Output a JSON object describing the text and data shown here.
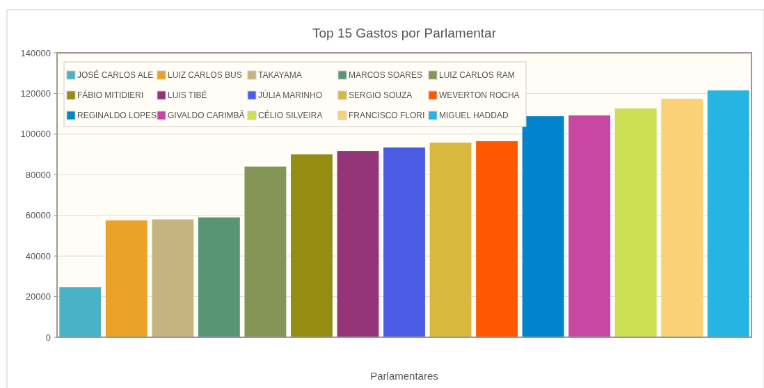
{
  "chart_data": {
    "type": "bar",
    "title": "Top 15 Gastos por Parlamentar",
    "xlabel": "Parlamentares",
    "categories": [
      null,
      null,
      null,
      null,
      null,
      null,
      null,
      null,
      null,
      null,
      null,
      null,
      null,
      null,
      null
    ],
    "ylim": [
      0,
      140000
    ],
    "yticks": [
      0,
      20000,
      40000,
      60000,
      80000,
      100000,
      120000,
      140000
    ],
    "grid": "y",
    "legend": "top left",
    "series": [
      {
        "name": "JOSÉ CARLOS ALE",
        "color": "#4bb2c5",
        "values": [
          24600,
          null,
          null,
          null,
          null,
          null,
          null,
          null,
          null,
          null,
          null,
          null,
          null,
          null,
          null
        ]
      },
      {
        "name": "LUIZ CARLOS BUS",
        "color": "#eaa228",
        "values": [
          null,
          57500,
          null,
          null,
          null,
          null,
          null,
          null,
          null,
          null,
          null,
          null,
          null,
          null,
          null
        ]
      },
      {
        "name": "TAKAYAMA",
        "color": "#c5b47f",
        "values": [
          null,
          null,
          58000,
          null,
          null,
          null,
          null,
          null,
          null,
          null,
          null,
          null,
          null,
          null,
          null
        ]
      },
      {
        "name": "MARCOS SOARES",
        "color": "#579575",
        "values": [
          null,
          null,
          null,
          59000,
          null,
          null,
          null,
          null,
          null,
          null,
          null,
          null,
          null,
          null,
          null
        ]
      },
      {
        "name": "LUIZ CARLOS RAM",
        "color": "#839557",
        "values": [
          null,
          null,
          null,
          null,
          84000,
          null,
          null,
          null,
          null,
          null,
          null,
          null,
          null,
          null,
          null
        ]
      },
      {
        "name": "FÁBIO MITIDIERI",
        "color": "#958c12",
        "values": [
          null,
          null,
          null,
          null,
          null,
          90000,
          null,
          null,
          null,
          null,
          null,
          null,
          null,
          null,
          null
        ]
      },
      {
        "name": "LUIS TIBÉ",
        "color": "#953579",
        "values": [
          null,
          null,
          null,
          null,
          null,
          null,
          91700,
          null,
          null,
          null,
          null,
          null,
          null,
          null,
          null
        ]
      },
      {
        "name": "JÚLIA MARINHO",
        "color": "#4b5de4",
        "values": [
          null,
          null,
          null,
          null,
          null,
          null,
          null,
          93400,
          null,
          null,
          null,
          null,
          null,
          null,
          null
        ]
      },
      {
        "name": "SERGIO SOUZA",
        "color": "#d8b83f",
        "values": [
          null,
          null,
          null,
          null,
          null,
          null,
          null,
          null,
          95800,
          null,
          null,
          null,
          null,
          null,
          null
        ]
      },
      {
        "name": "WEVERTON ROCHA",
        "color": "#ff5800",
        "values": [
          null,
          null,
          null,
          null,
          null,
          null,
          null,
          null,
          null,
          96500,
          null,
          null,
          null,
          null,
          null
        ]
      },
      {
        "name": "REGINALDO LOPES",
        "color": "#0085cc",
        "values": [
          null,
          null,
          null,
          null,
          null,
          null,
          null,
          null,
          null,
          null,
          108800,
          null,
          null,
          null,
          null
        ]
      },
      {
        "name": "GIVALDO CARIMBÃ",
        "color": "#c747a3",
        "values": [
          null,
          null,
          null,
          null,
          null,
          null,
          null,
          null,
          null,
          null,
          null,
          109200,
          null,
          null,
          null
        ]
      },
      {
        "name": "CÉLIO SILVEIRA",
        "color": "#cddf54",
        "values": [
          null,
          null,
          null,
          null,
          null,
          null,
          null,
          null,
          null,
          null,
          null,
          null,
          112600,
          null,
          null
        ]
      },
      {
        "name": "FRANCISCO FLORI",
        "color": "#fbd178",
        "values": [
          null,
          null,
          null,
          null,
          null,
          null,
          null,
          null,
          null,
          null,
          null,
          null,
          null,
          117400,
          null
        ]
      },
      {
        "name": "MIGUEL HADDAD",
        "color": "#26b4e3",
        "values": [
          null,
          null,
          null,
          null,
          null,
          null,
          null,
          null,
          null,
          null,
          null,
          null,
          null,
          null,
          121500
        ]
      }
    ]
  }
}
